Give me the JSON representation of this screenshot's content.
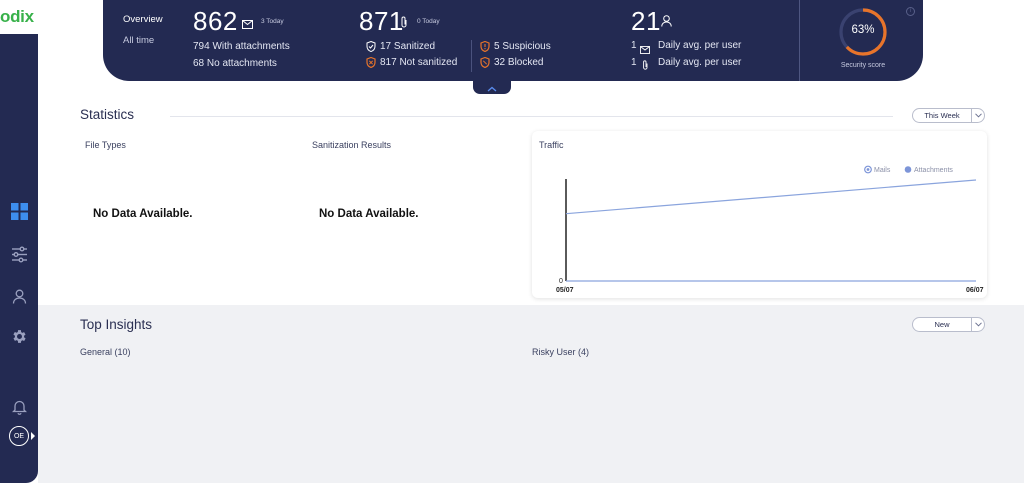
{
  "app": {
    "logo_text": "odix"
  },
  "overview": {
    "label": "Overview",
    "period": "All time",
    "mails": {
      "count": "862",
      "today": "3 Today",
      "with_attachments": "794 With attachments",
      "no_attachments": "68 No attachments"
    },
    "attachments": {
      "count": "871",
      "today": "0 Today",
      "sanitized": "17 Sanitized",
      "not_sanitized": "817 Not sanitized",
      "suspicious": "5 Suspicious",
      "blocked": "32 Blocked"
    },
    "users": {
      "count": "21",
      "avg_mail_value": "1",
      "avg_mail_label": "Daily avg. per user",
      "avg_attach_value": "1",
      "avg_attach_label": "Daily avg. per user"
    },
    "security": {
      "score": "63%",
      "score_value": 63,
      "label": "Security score"
    }
  },
  "statistics": {
    "title": "Statistics",
    "period_select": "This Week",
    "file_types": {
      "title": "File Types",
      "empty": "No Data Available."
    },
    "sanitization": {
      "title": "Sanitization Results",
      "empty": "No Data Available."
    },
    "traffic": {
      "title": "Traffic",
      "legend_mails": "Mails",
      "legend_attachments": "Attachments",
      "y_zero": "0",
      "x_start": "05/07",
      "x_end": "06/07"
    }
  },
  "insights": {
    "title": "Top Insights",
    "sort_select": "New",
    "general": "General (10)",
    "risky_user": "Risky User (4)"
  },
  "sidebar": {
    "user_initials": "OE"
  },
  "colors": {
    "navy": "#232a52",
    "accent_orange": "#e8742a",
    "brand_green": "#38b14a",
    "line_blue": "#8aa4dd"
  },
  "chart_data": {
    "type": "line",
    "title": "Traffic",
    "x": [
      "05/07",
      "06/07"
    ],
    "series": [
      {
        "name": "Mails",
        "values": [
          0,
          0
        ]
      },
      {
        "name": "Attachments",
        "values": [
          0.66,
          0.99
        ]
      }
    ],
    "legend": "top-right",
    "grid": false
  }
}
